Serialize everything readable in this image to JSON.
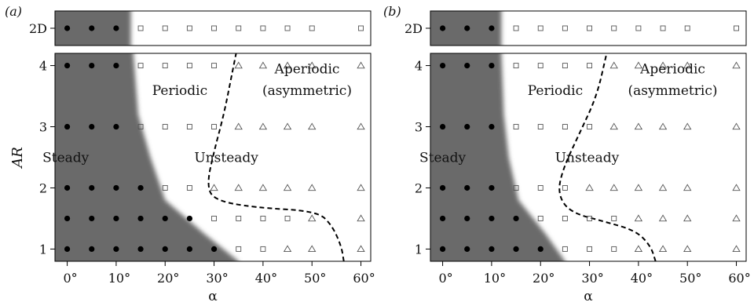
{
  "chart_data": [
    {
      "type": "scatter",
      "panel_label": "(a)",
      "xlabel": "α",
      "ylabel": "AR",
      "x_ticks": [
        0,
        10,
        20,
        30,
        40,
        50,
        60
      ],
      "x_tick_labels": [
        "0°",
        "10°",
        "20°",
        "30°",
        "40°",
        "50°",
        "60°"
      ],
      "y_ticks": [
        1,
        2,
        3,
        4
      ],
      "y_tick_labels": [
        "1",
        "2",
        "3",
        "4"
      ],
      "top_tick_label": "2D",
      "xlim": [
        -2.5,
        62
      ],
      "ylim": [
        0.8,
        4.2
      ],
      "region_labels": [
        {
          "text": "Steady"
        },
        {
          "text": "Periodic"
        },
        {
          "text": "Unsteady"
        },
        {
          "text": "Aperiodic"
        },
        {
          "text": "(asymmetric)"
        }
      ],
      "steady_boundary": [
        [
          35,
          0.8
        ],
        [
          28,
          1.25
        ],
        [
          20,
          1.8
        ],
        [
          17,
          2.5
        ],
        [
          14.5,
          3.2
        ],
        [
          13.5,
          4.2
        ]
      ],
      "dashed_boundary": [
        [
          56.5,
          0.8
        ],
        [
          56,
          1.05
        ],
        [
          54,
          1.4
        ],
        [
          51,
          1.62
        ],
        [
          38,
          1.68
        ],
        [
          30,
          1.8
        ],
        [
          28.5,
          2.05
        ],
        [
          30,
          2.6
        ],
        [
          32,
          3.2
        ],
        [
          33.5,
          3.8
        ],
        [
          34.5,
          4.2
        ]
      ],
      "series": [
        {
          "marker": "steady",
          "points": [
            [
              0,
              1
            ],
            [
              5,
              1
            ],
            [
              10,
              1
            ],
            [
              15,
              1
            ],
            [
              20,
              1
            ],
            [
              25,
              1
            ],
            [
              30,
              1
            ],
            [
              0,
              1.5
            ],
            [
              5,
              1.5
            ],
            [
              10,
              1.5
            ],
            [
              15,
              1.5
            ],
            [
              20,
              1.5
            ],
            [
              25,
              1.5
            ],
            [
              0,
              2
            ],
            [
              5,
              2
            ],
            [
              10,
              2
            ],
            [
              15,
              2
            ],
            [
              0,
              3
            ],
            [
              5,
              3
            ],
            [
              10,
              3
            ],
            [
              0,
              4
            ],
            [
              5,
              4
            ],
            [
              10,
              4
            ]
          ]
        },
        {
          "marker": "periodic",
          "points": [
            [
              35,
              1
            ],
            [
              40,
              1
            ],
            [
              30,
              1.5
            ],
            [
              35,
              1.5
            ],
            [
              40,
              1.5
            ],
            [
              45,
              1.5
            ],
            [
              20,
              2
            ],
            [
              25,
              2
            ],
            [
              15,
              3
            ],
            [
              20,
              3
            ],
            [
              25,
              3
            ],
            [
              30,
              3
            ],
            [
              15,
              4
            ],
            [
              20,
              4
            ],
            [
              25,
              4
            ],
            [
              30,
              4
            ]
          ]
        },
        {
          "marker": "aperiodic",
          "points": [
            [
              45,
              1
            ],
            [
              50,
              1
            ],
            [
              60,
              1
            ],
            [
              50,
              1.5
            ],
            [
              60,
              1.5
            ],
            [
              30,
              2
            ],
            [
              35,
              2
            ],
            [
              40,
              2
            ],
            [
              45,
              2
            ],
            [
              50,
              2
            ],
            [
              60,
              2
            ],
            [
              35,
              3
            ],
            [
              40,
              3
            ],
            [
              45,
              3
            ],
            [
              50,
              3
            ],
            [
              60,
              3
            ],
            [
              35,
              4
            ],
            [
              40,
              4
            ],
            [
              45,
              4
            ],
            [
              50,
              4
            ],
            [
              60,
              4
            ]
          ]
        }
      ],
      "top_strip": {
        "steady_boundary": 13,
        "steady": [
          0,
          5,
          10
        ],
        "periodic": [
          15,
          20,
          25,
          30,
          35,
          40,
          45,
          50,
          60
        ]
      }
    },
    {
      "type": "scatter",
      "panel_label": "(b)",
      "xlabel": "α",
      "ylabel": "",
      "x_ticks": [
        0,
        10,
        20,
        30,
        40,
        50,
        60
      ],
      "x_tick_labels": [
        "0°",
        "10°",
        "20°",
        "30°",
        "40°",
        "50°",
        "60°"
      ],
      "y_ticks": [
        1,
        2,
        3,
        4
      ],
      "y_tick_labels": [
        "1",
        "2",
        "3",
        "4"
      ],
      "top_tick_label": "2D",
      "xlim": [
        -2.5,
        62
      ],
      "ylim": [
        0.8,
        4.2
      ],
      "region_labels": [
        {
          "text": "Steady"
        },
        {
          "text": "Periodic"
        },
        {
          "text": "Unsteady"
        },
        {
          "text": "Aperiodic"
        },
        {
          "text": "(asymmetric)"
        }
      ],
      "steady_boundary": [
        [
          25,
          0.8
        ],
        [
          21,
          1.25
        ],
        [
          15.5,
          1.8
        ],
        [
          13.5,
          2.5
        ],
        [
          12.5,
          3.2
        ],
        [
          12,
          4.2
        ]
      ],
      "dashed_boundary": [
        [
          43.5,
          0.8
        ],
        [
          42.5,
          1.05
        ],
        [
          39.5,
          1.3
        ],
        [
          33,
          1.45
        ],
        [
          26,
          1.6
        ],
        [
          23.5,
          1.9
        ],
        [
          24.5,
          2.3
        ],
        [
          28,
          2.9
        ],
        [
          31.5,
          3.5
        ],
        [
          33.5,
          4.2
        ]
      ],
      "series": [
        {
          "marker": "steady",
          "points": [
            [
              0,
              1
            ],
            [
              5,
              1
            ],
            [
              10,
              1
            ],
            [
              15,
              1
            ],
            [
              20,
              1
            ],
            [
              0,
              1.5
            ],
            [
              5,
              1.5
            ],
            [
              10,
              1.5
            ],
            [
              15,
              1.5
            ],
            [
              0,
              2
            ],
            [
              5,
              2
            ],
            [
              10,
              2
            ],
            [
              0,
              3
            ],
            [
              5,
              3
            ],
            [
              10,
              3
            ],
            [
              0,
              4
            ],
            [
              5,
              4
            ],
            [
              10,
              4
            ]
          ]
        },
        {
          "marker": "periodic",
          "points": [
            [
              25,
              1
            ],
            [
              30,
              1
            ],
            [
              35,
              1
            ],
            [
              20,
              1.5
            ],
            [
              25,
              1.5
            ],
            [
              30,
              1.5
            ],
            [
              35,
              1.5
            ],
            [
              15,
              2
            ],
            [
              20,
              2
            ],
            [
              25,
              2
            ],
            [
              15,
              3
            ],
            [
              20,
              3
            ],
            [
              25,
              3
            ],
            [
              30,
              3
            ],
            [
              15,
              4
            ],
            [
              20,
              4
            ],
            [
              25,
              4
            ],
            [
              30,
              4
            ]
          ]
        },
        {
          "marker": "aperiodic",
          "points": [
            [
              40,
              1
            ],
            [
              45,
              1
            ],
            [
              50,
              1
            ],
            [
              60,
              1
            ],
            [
              40,
              1.5
            ],
            [
              45,
              1.5
            ],
            [
              50,
              1.5
            ],
            [
              60,
              1.5
            ],
            [
              30,
              2
            ],
            [
              35,
              2
            ],
            [
              40,
              2
            ],
            [
              45,
              2
            ],
            [
              50,
              2
            ],
            [
              60,
              2
            ],
            [
              35,
              3
            ],
            [
              40,
              3
            ],
            [
              45,
              3
            ],
            [
              50,
              3
            ],
            [
              60,
              3
            ],
            [
              35,
              4
            ],
            [
              40,
              4
            ],
            [
              45,
              4
            ],
            [
              50,
              4
            ],
            [
              60,
              4
            ]
          ]
        }
      ],
      "top_strip": {
        "steady_boundary": 12,
        "steady": [
          0,
          5,
          10
        ],
        "periodic": [
          15,
          20,
          25,
          30,
          35,
          40,
          45,
          50,
          60
        ]
      }
    }
  ],
  "colors": {
    "steady_region": "#6b6b6b",
    "marker": "#000000",
    "open_marker": "#555555"
  }
}
